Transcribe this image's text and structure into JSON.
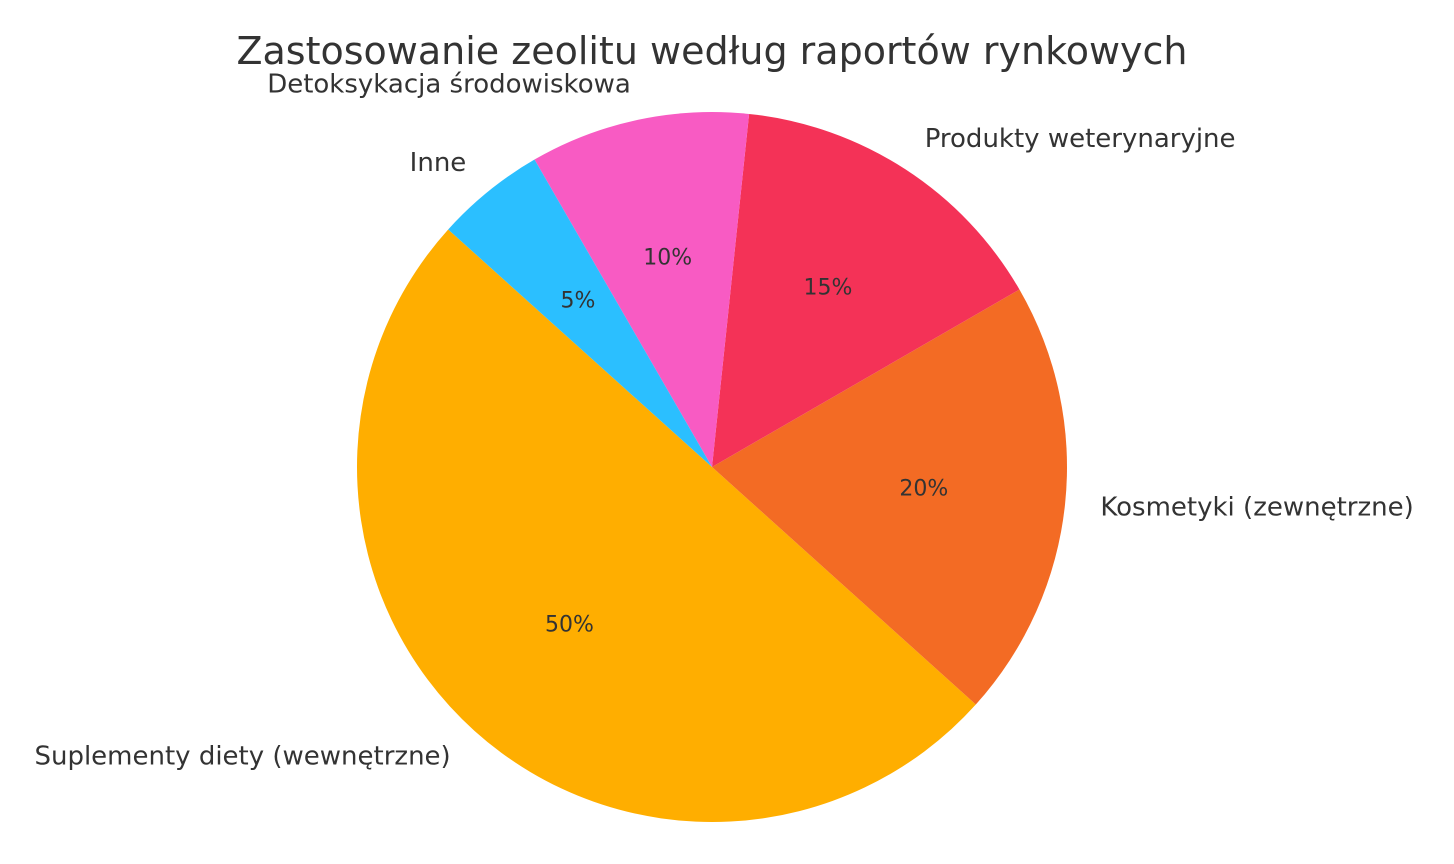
{
  "chart_data": {
    "type": "pie",
    "title": "Zastosowanie zeolitu według raportów rynkowych",
    "slices": [
      {
        "label": "Suplementy diety (wewnętrzne)",
        "value": 50,
        "pct_label": "50%",
        "color": "#FFAE00"
      },
      {
        "label": "Kosmetyki (zewnętrzne)",
        "value": 20,
        "pct_label": "20%",
        "color": "#F36B24"
      },
      {
        "label": "Produkty weterynaryjne",
        "value": 15,
        "pct_label": "15%",
        "color": "#F43257"
      },
      {
        "label": "Detoksykacja środowiskowa",
        "value": 10,
        "pct_label": "10%",
        "color": "#F85BC3"
      },
      {
        "label": "Inne",
        "value": 5,
        "pct_label": "5%",
        "color": "#2BBFFF"
      }
    ],
    "start_angle_deg": 138,
    "direction": "counterclockwise",
    "legend": "none"
  }
}
